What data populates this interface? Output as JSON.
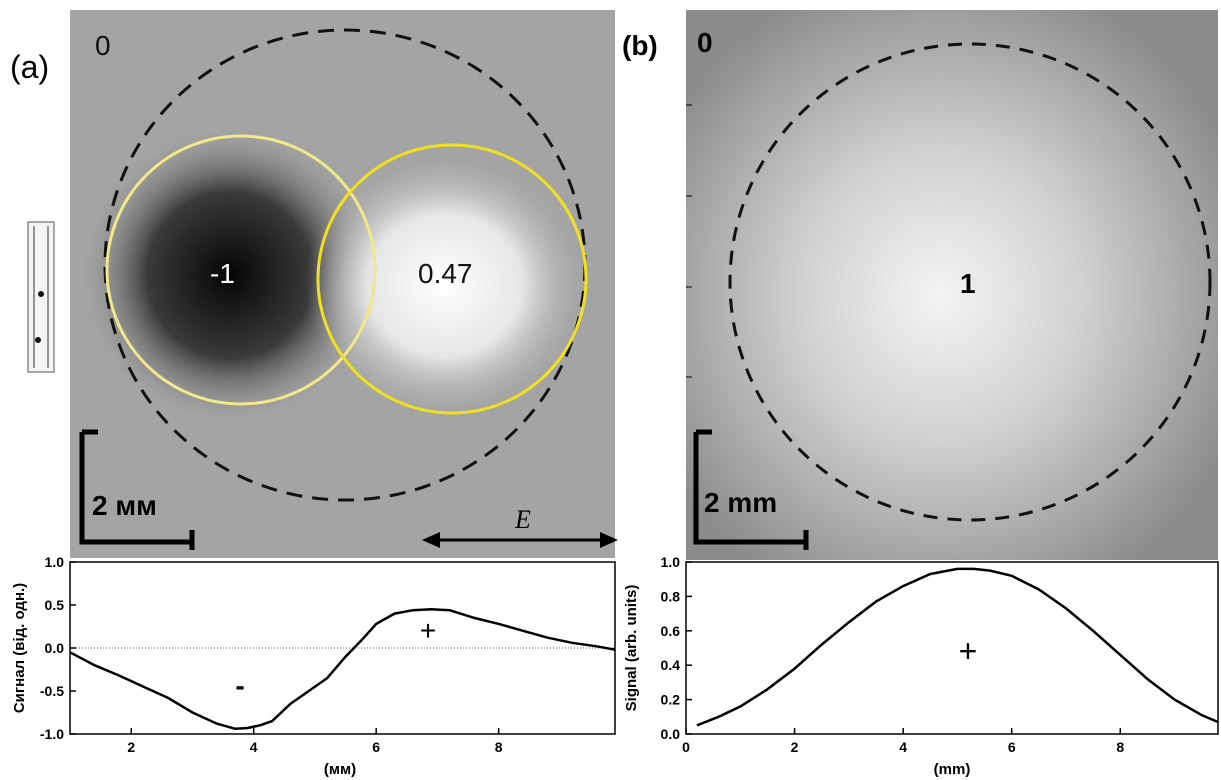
{
  "panel_a": {
    "label": "(a)",
    "corner_value": "0",
    "left_value": "-1",
    "right_value": "0.47",
    "scale_label": "2 мм",
    "field_label": "E"
  },
  "panel_b": {
    "label": "(b)",
    "corner_value": "0",
    "center_value": "1",
    "scale_label": "2 mm"
  },
  "colors": {
    "yellow_circle_left": "#f2e88a",
    "yellow_circle_right": "#f0e020",
    "dashed_circle": "#111111",
    "curve": "#000000"
  },
  "chart_data": [
    {
      "type": "line",
      "xlabel": "(мм)",
      "ylabel": "Сигнал (від. одн.)",
      "xlim": [
        1,
        9.9
      ],
      "ylim": [
        -1.0,
        1.0
      ],
      "xticks": [
        "2",
        "4",
        "6",
        "8"
      ],
      "yticks": [
        "-1.0",
        "-0.5",
        "0.0",
        "0.5",
        "1.0"
      ],
      "annotations": [
        "-",
        "+"
      ],
      "series": [
        {
          "x": [
            1.0,
            1.4,
            1.8,
            2.2,
            2.6,
            3.0,
            3.4,
            3.7,
            3.9,
            4.1,
            4.3,
            4.6,
            4.9,
            5.2,
            5.5,
            5.8,
            6.0,
            6.3,
            6.6,
            6.9,
            7.2,
            7.6,
            8.0,
            8.4,
            8.8,
            9.2,
            9.6,
            9.9
          ],
          "y": [
            -0.05,
            -0.2,
            -0.32,
            -0.45,
            -0.58,
            -0.75,
            -0.88,
            -0.94,
            -0.93,
            -0.9,
            -0.85,
            -0.65,
            -0.5,
            -0.35,
            -0.1,
            0.12,
            0.28,
            0.4,
            0.44,
            0.45,
            0.44,
            0.35,
            0.28,
            0.2,
            0.12,
            0.06,
            0.02,
            -0.02
          ]
        }
      ],
      "zero_line": true
    },
    {
      "type": "line",
      "xlabel": "(mm)",
      "ylabel": "Signal (arb. units)",
      "xlim": [
        0,
        9.8
      ],
      "ylim": [
        0.0,
        1.0
      ],
      "xticks": [
        "0",
        "2",
        "4",
        "6",
        "8"
      ],
      "yticks": [
        "0.0",
        "0.2",
        "0.4",
        "0.6",
        "0.8",
        "1.0"
      ],
      "annotations": [
        "+"
      ],
      "series": [
        {
          "x": [
            0.2,
            0.6,
            1.0,
            1.5,
            2.0,
            2.5,
            3.0,
            3.5,
            4.0,
            4.5,
            5.0,
            5.3,
            5.6,
            6.0,
            6.5,
            7.0,
            7.5,
            8.0,
            8.5,
            9.0,
            9.5,
            9.8
          ],
          "y": [
            0.05,
            0.1,
            0.16,
            0.26,
            0.38,
            0.52,
            0.65,
            0.77,
            0.86,
            0.93,
            0.96,
            0.96,
            0.95,
            0.92,
            0.84,
            0.73,
            0.6,
            0.46,
            0.32,
            0.2,
            0.11,
            0.07
          ]
        }
      ]
    }
  ]
}
